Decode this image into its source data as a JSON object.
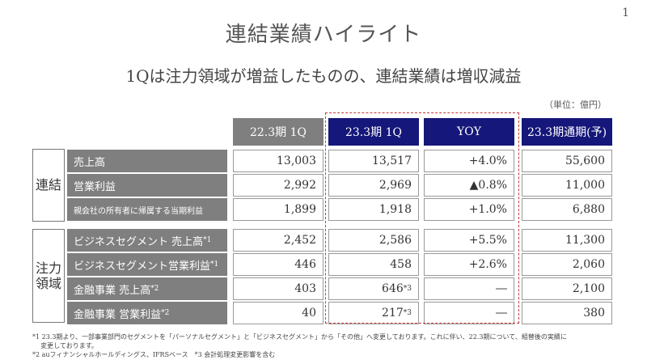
{
  "page_number": "1",
  "title": "連結業績ハイライト",
  "subtitle": "1Qは注力領域が増益したものの、連結業績は増収減益",
  "unit": "（単位：億円）",
  "headers": [
    "22.3期 1Q",
    "23.3期 1Q",
    "YOY",
    "23.3期通期(予)"
  ],
  "groups": [
    {
      "label": "連結"
    },
    {
      "label": "注力\n領域"
    }
  ],
  "rows": [
    {
      "label": "売上高",
      "sup": "",
      "v1": "13,003",
      "v2": "13,517",
      "v2sup": "",
      "yoy": "+4.0%",
      "full": "55,600"
    },
    {
      "label": "営業利益",
      "sup": "",
      "v1": "2,992",
      "v2": "2,969",
      "v2sup": "",
      "yoy": "▲0.8%",
      "full": "11,000"
    },
    {
      "label": "親会社の所有者に帰属する当期利益",
      "sup": "",
      "v1": "1,899",
      "v2": "1,918",
      "v2sup": "",
      "yoy": "+1.0%",
      "full": "6,880"
    },
    {
      "label": "ビジネスセグメント 売上高",
      "sup": "*1",
      "v1": "2,452",
      "v2": "2,586",
      "v2sup": "",
      "yoy": "+5.5%",
      "full": "11,300"
    },
    {
      "label": "ビジネスセグメント営業利益",
      "sup": "*1",
      "v1": "446",
      "v2": "458",
      "v2sup": "",
      "yoy": "+2.6%",
      "full": "2,060"
    },
    {
      "label": "金融事業 売上高",
      "sup": "*2",
      "v1": "403",
      "v2": "646",
      "v2sup": "*3",
      "yoy": "―",
      "full": "2,100"
    },
    {
      "label": "金融事業 営業利益",
      "sup": "*2",
      "v1": "40",
      "v2": "217",
      "v2sup": "*3",
      "yoy": "―",
      "full": "380"
    }
  ],
  "notes": [
    "*1 23.3期より、一部事業部門のセグメントを「パーソナルセグメント」と「ビジネスセグメント」から「その他」へ変更しております。これに伴い、22.3期について、組替後の実績に",
    "    変更しております。",
    "*2 auフィナンシャルホールディングス、IFRSベース　*3 会計処理変更影響を含む"
  ],
  "colors": {
    "header_gray": "#7f7f7f",
    "header_navy": "#15177a",
    "dashed_box": "#c43a3a"
  }
}
